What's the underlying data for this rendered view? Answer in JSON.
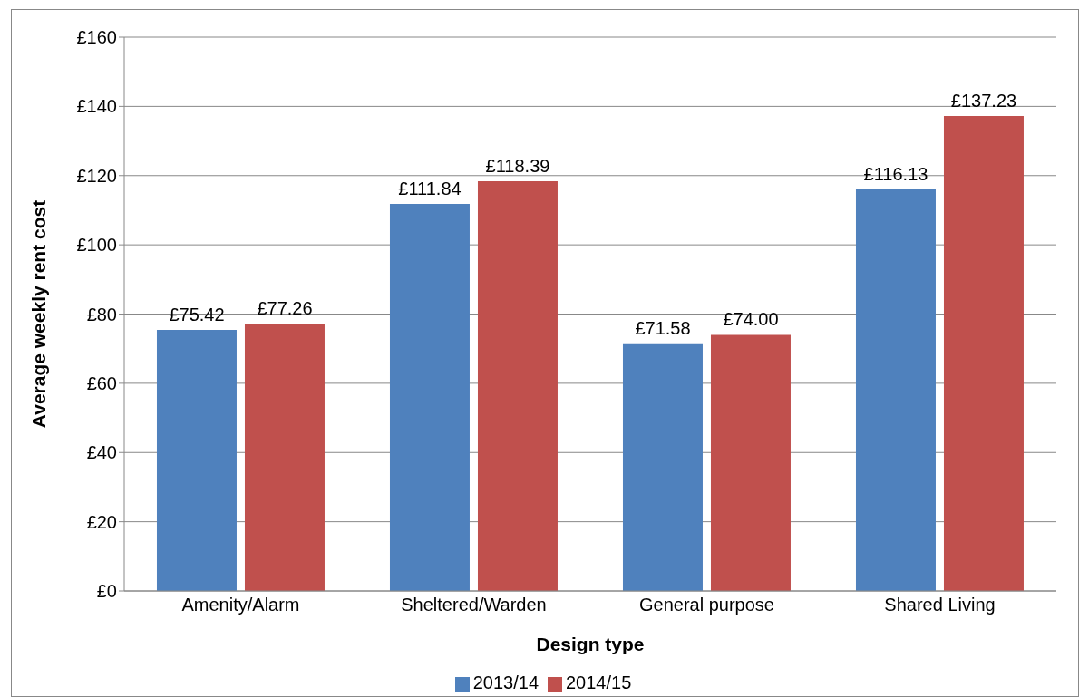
{
  "chart_data": {
    "type": "bar",
    "xlabel": "Design type",
    "ylabel": "Average weekly rent cost",
    "categories": [
      "Amenity/Alarm",
      "Sheltered/Warden",
      "General purpose",
      "Shared Living"
    ],
    "series": [
      {
        "name": "2013/14",
        "color": "#4f81bd",
        "values": [
          75.42,
          111.84,
          71.58,
          116.13
        ],
        "value_labels": [
          "£75.42",
          "£111.84",
          "£71.58",
          "£116.13"
        ]
      },
      {
        "name": "2014/15",
        "color": "#c0504d",
        "values": [
          77.26,
          118.39,
          74.0,
          137.23
        ],
        "value_labels": [
          "£77.26",
          "£118.39",
          "£74.00",
          "£137.23"
        ]
      }
    ],
    "ylim": [
      0,
      160
    ],
    "yticks": [
      {
        "value": 0,
        "label": "£0"
      },
      {
        "value": 20,
        "label": "£20"
      },
      {
        "value": 40,
        "label": "£40"
      },
      {
        "value": 60,
        "label": "£60"
      },
      {
        "value": 80,
        "label": "£80"
      },
      {
        "value": 100,
        "label": "£100"
      },
      {
        "value": 120,
        "label": "£120"
      },
      {
        "value": 140,
        "label": "£140"
      },
      {
        "value": 160,
        "label": "£160"
      }
    ],
    "grid": "y",
    "legend": "bottom"
  }
}
